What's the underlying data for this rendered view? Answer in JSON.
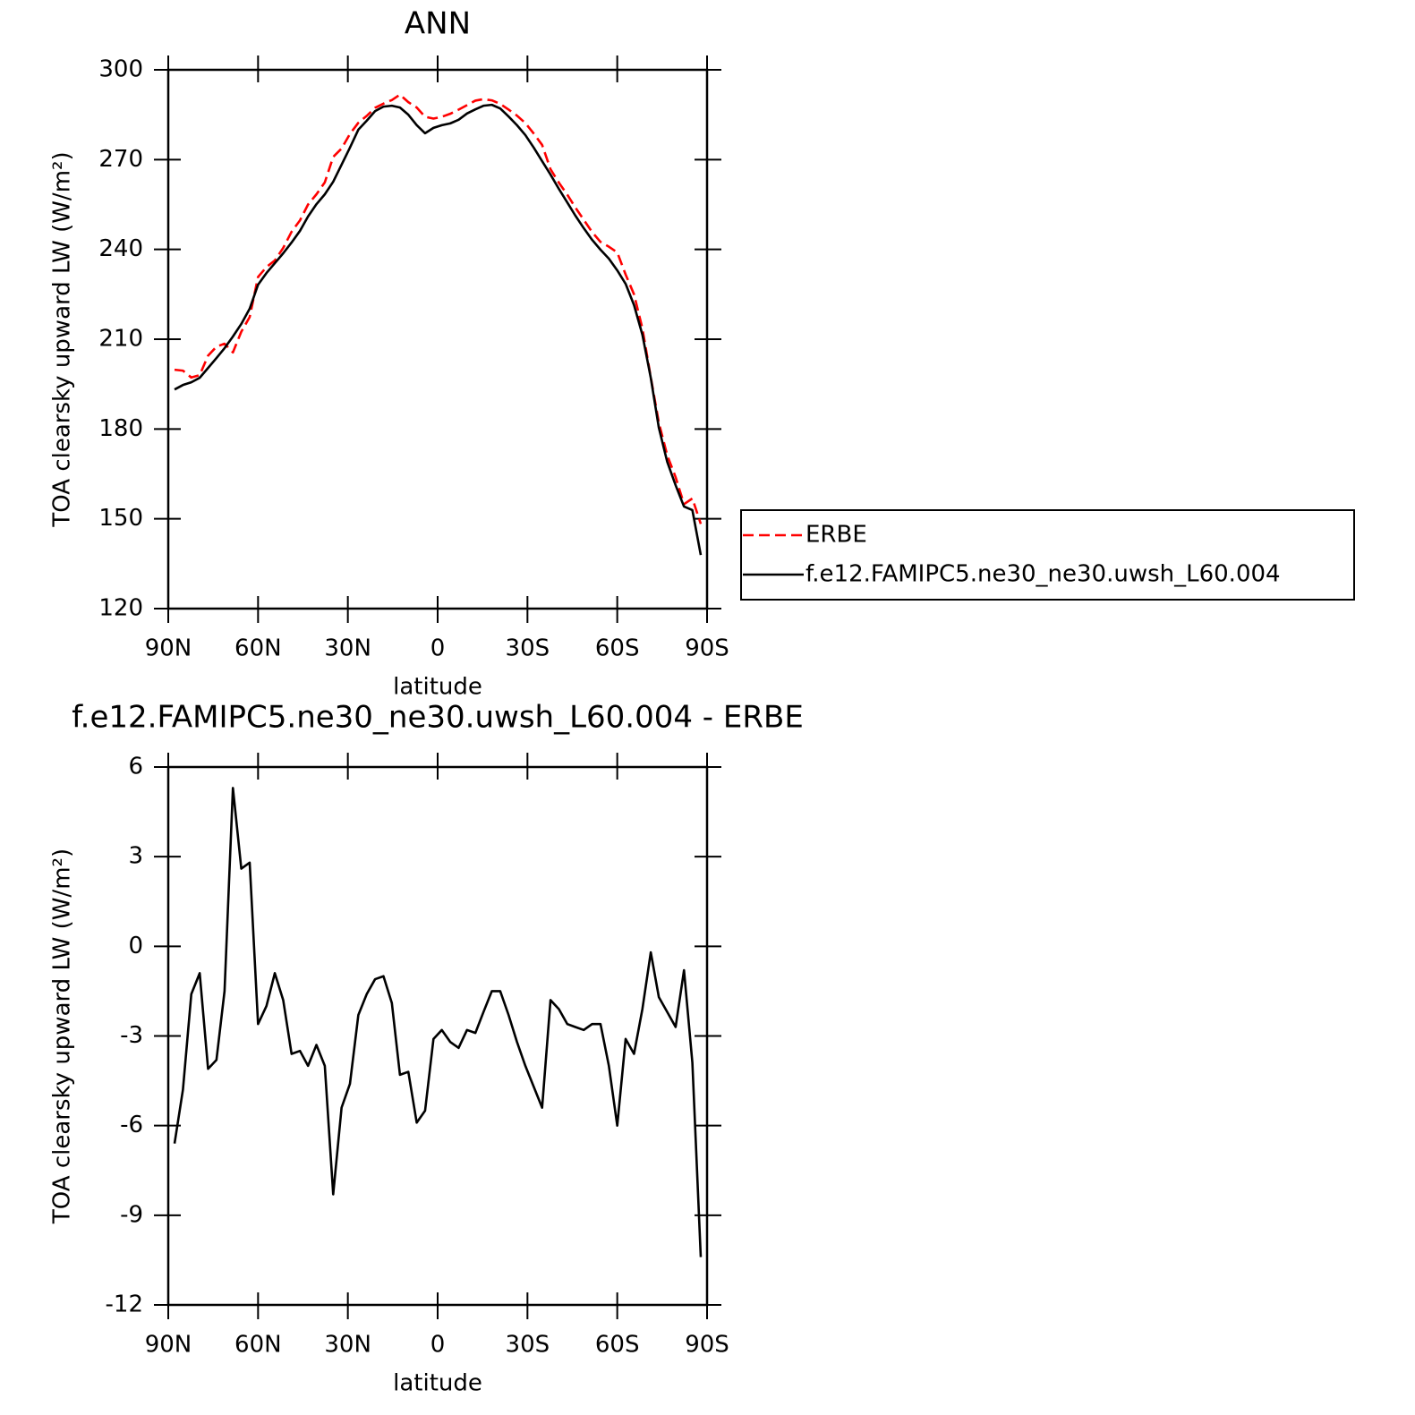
{
  "charts": [
    {
      "type": "line",
      "title": "ANN",
      "xlabel": "latitude",
      "ylabel": "TOA clearsky upward LW (W/m²)",
      "x": [
        87.9,
        85.1,
        82.3,
        79.5,
        76.7,
        73.9,
        71.2,
        68.4,
        65.6,
        62.8,
        60.0,
        57.2,
        54.4,
        51.6,
        48.8,
        46.0,
        43.3,
        40.5,
        37.7,
        34.9,
        32.1,
        29.3,
        26.5,
        23.7,
        20.9,
        18.1,
        15.3,
        12.6,
        9.8,
        7.0,
        4.2,
        1.4,
        -1.4,
        -4.2,
        -7.0,
        -9.8,
        -12.6,
        -15.3,
        -18.1,
        -20.9,
        -23.7,
        -26.5,
        -29.3,
        -32.1,
        -34.9,
        -37.7,
        -40.5,
        -43.3,
        -46.0,
        -48.8,
        -51.6,
        -54.4,
        -57.2,
        -60.0,
        -62.8,
        -65.6,
        -68.4,
        -71.2,
        -73.9,
        -76.7,
        -79.5,
        -82.3,
        -85.1,
        -87.9
      ],
      "series": [
        {
          "name": "ERBE",
          "color": "#ff0000",
          "dashed": true,
          "values": [
            199.8,
            199.5,
            197.2,
            198.0,
            204.5,
            207.5,
            208.5,
            205.6,
            212.5,
            217.4,
            230.8,
            234.1,
            236.3,
            240.5,
            245.9,
            249.7,
            255.0,
            258.4,
            262.4,
            270.9,
            273.7,
            278.6,
            282.3,
            284.6,
            287.3,
            288.7,
            289.9,
            291.7,
            289.2,
            287.4,
            284.3,
            283.7,
            284.3,
            285.3,
            286.7,
            288.2,
            289.7,
            290.2,
            289.8,
            288.6,
            286.7,
            284.7,
            282.2,
            278.7,
            274.9,
            266.8,
            262.3,
            258.3,
            254.0,
            249.9,
            245.8,
            242.5,
            240.9,
            239.0,
            231.6,
            225.0,
            213.6,
            197.3,
            182.1,
            171.2,
            163.9,
            154.9,
            156.8,
            148.3
          ]
        },
        {
          "name": "f.e12.FAMIPC5.ne30_ne30.uwsh_L60.004",
          "color": "#000000",
          "dashed": false,
          "values": [
            193.2,
            194.7,
            195.6,
            197.1,
            200.4,
            203.7,
            207.0,
            210.9,
            215.1,
            220.2,
            228.2,
            232.1,
            235.4,
            238.7,
            242.3,
            246.2,
            251.0,
            255.1,
            258.4,
            262.6,
            268.3,
            274.0,
            280.0,
            283.0,
            286.2,
            287.7,
            288.0,
            287.4,
            285.0,
            281.5,
            278.8,
            280.6,
            281.5,
            282.1,
            283.3,
            285.4,
            286.8,
            288.0,
            288.3,
            287.1,
            284.4,
            281.5,
            278.2,
            274.0,
            269.5,
            265.0,
            260.2,
            255.7,
            251.3,
            247.1,
            243.2,
            239.9,
            236.9,
            233.0,
            228.5,
            221.4,
            211.5,
            197.1,
            180.4,
            169.0,
            161.2,
            154.1,
            152.9,
            137.9
          ]
        }
      ],
      "xlim": [
        90,
        -90
      ],
      "xticks": [
        {
          "value": 90,
          "label": "90N"
        },
        {
          "value": 60,
          "label": "60N"
        },
        {
          "value": 30,
          "label": "30N"
        },
        0,
        {
          "value": -30,
          "label": "30S"
        },
        {
          "value": -60,
          "label": "60S"
        },
        {
          "value": -90,
          "label": "90S"
        }
      ],
      "ylim": [
        120,
        300
      ],
      "yticks": [
        120,
        150,
        180,
        210,
        240,
        270,
        300
      ],
      "grid": false,
      "legend": "right"
    },
    {
      "type": "line",
      "title": "f.e12.FAMIPC5.ne30_ne30.uwsh_L60.004 - ERBE",
      "xlabel": "latitude",
      "ylabel": "TOA clearsky upward LW (W/m²)",
      "x": [
        87.9,
        85.1,
        82.3,
        79.5,
        76.7,
        73.9,
        71.2,
        68.4,
        65.6,
        62.8,
        60.0,
        57.2,
        54.4,
        51.6,
        48.8,
        46.0,
        43.3,
        40.5,
        37.7,
        34.9,
        32.1,
        29.3,
        26.5,
        23.7,
        20.9,
        18.1,
        15.3,
        12.6,
        9.8,
        7.0,
        4.2,
        1.4,
        -1.4,
        -4.2,
        -7.0,
        -9.8,
        -12.6,
        -15.3,
        -18.1,
        -20.9,
        -23.7,
        -26.5,
        -29.3,
        -32.1,
        -34.9,
        -37.7,
        -40.5,
        -43.3,
        -46.0,
        -48.8,
        -51.6,
        -54.4,
        -57.2,
        -60.0,
        -62.8,
        -65.6,
        -68.4,
        -71.2,
        -73.9,
        -76.7,
        -79.5,
        -82.3,
        -85.1,
        -87.9
      ],
      "series": [
        {
          "color": "#000000",
          "dashed": false,
          "values": [
            -6.6,
            -4.8,
            -1.6,
            -0.9,
            -4.1,
            -3.8,
            -1.5,
            5.3,
            2.6,
            2.8,
            -2.6,
            -2.0,
            -0.9,
            -1.8,
            -3.6,
            -3.5,
            -4.0,
            -3.3,
            -4.0,
            -8.3,
            -5.4,
            -4.6,
            -2.3,
            -1.6,
            -1.1,
            -1.0,
            -1.9,
            -4.3,
            -4.2,
            -5.9,
            -5.5,
            -3.1,
            -2.8,
            -3.2,
            -3.4,
            -2.8,
            -2.9,
            -2.2,
            -1.5,
            -1.5,
            -2.3,
            -3.2,
            -4.0,
            -4.7,
            -5.4,
            -1.8,
            -2.1,
            -2.6,
            -2.7,
            -2.8,
            -2.6,
            -2.6,
            -4.0,
            -6.0,
            -3.1,
            -3.6,
            -2.1,
            -0.2,
            -1.7,
            -2.2,
            -2.7,
            -0.8,
            -3.9,
            -10.4
          ]
        }
      ],
      "xlim": [
        90,
        -90
      ],
      "xticks": [
        {
          "value": 90,
          "label": "90N"
        },
        {
          "value": 60,
          "label": "60N"
        },
        {
          "value": 30,
          "label": "30N"
        },
        0,
        {
          "value": -30,
          "label": "30S"
        },
        {
          "value": -60,
          "label": "60S"
        },
        {
          "value": -90,
          "label": "90S"
        }
      ],
      "ylim": [
        -12,
        6
      ],
      "yticks": [
        -12,
        -9,
        -6,
        -3,
        0,
        3,
        6
      ],
      "grid": false
    }
  ]
}
